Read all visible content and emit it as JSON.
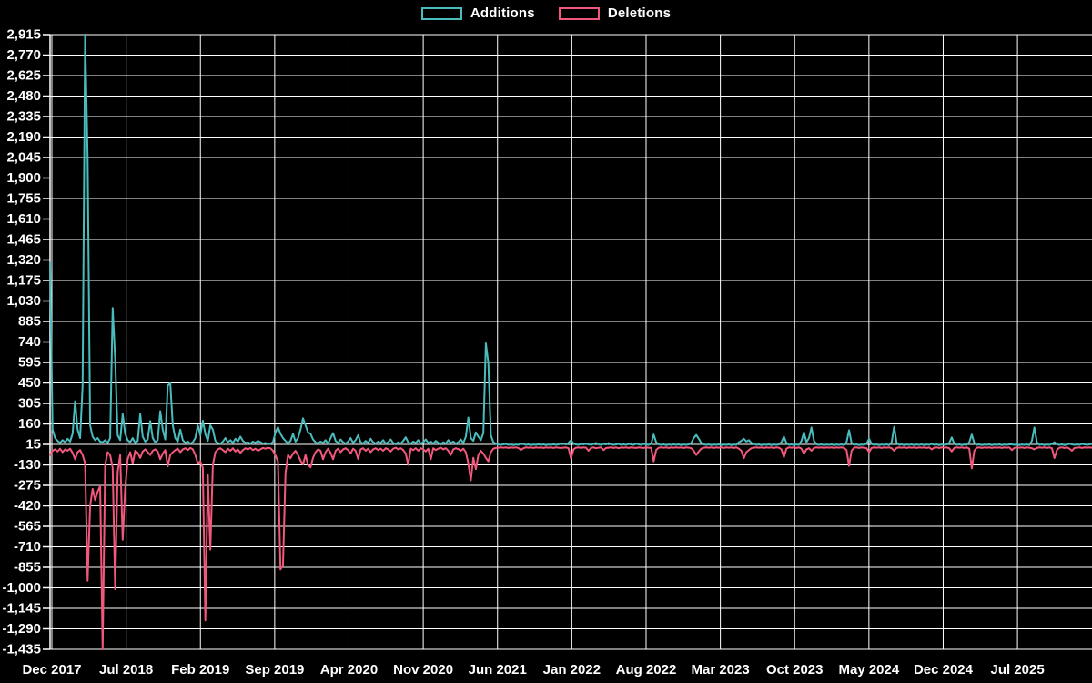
{
  "page": {
    "background": "#000000",
    "text_color": "#ffffff",
    "grid_color": "#ffffff",
    "axis_color": "#ffffff"
  },
  "legend": {
    "items": [
      {
        "label": "Additions",
        "color": "#4abcbd"
      },
      {
        "label": "Deletions",
        "color": "#f2587c"
      }
    ]
  },
  "chart_data": {
    "type": "line",
    "title": "",
    "xlabel": "",
    "ylabel": "",
    "grid": true,
    "legend_position": "top-center",
    "x_unit": "weeks",
    "x_range_note": "weekly points from Dec 2017 to Oct 2025",
    "x_tick_labels": [
      "Dec 2017",
      "Jul 2018",
      "Feb 2019",
      "Sep 2019",
      "Apr 2020",
      "Nov 2020",
      "Jun 2021",
      "Jan 2022",
      "Aug 2022",
      "Mar 2023",
      "Oct 2023",
      "May 2024",
      "Dec 2024",
      "Jul 2025"
    ],
    "y_min": -1435,
    "y_max": 2915,
    "y_step": 145,
    "y_tick_labels": [
      "2,915",
      "2,770",
      "2,625",
      "2,480",
      "2,335",
      "2,190",
      "2,045",
      "1,900",
      "1,755",
      "1,610",
      "1,465",
      "1,320",
      "1,175",
      "1,030",
      "885",
      "740",
      "595",
      "450",
      "305",
      "160",
      "15",
      "-130",
      "-275",
      "-420",
      "-565",
      "-710",
      "-855",
      "-1,000",
      "-1,145",
      "-1,290",
      "-1,435"
    ],
    "series": [
      {
        "name": "Additions",
        "color": "#4abcbd",
        "values": [
          1300,
          120,
          60,
          40,
          25,
          45,
          30,
          55,
          35,
          90,
          320,
          120,
          60,
          430,
          2915,
          2040,
          150,
          70,
          45,
          60,
          35,
          30,
          45,
          25,
          60,
          980,
          620,
          80,
          45,
          230,
          90,
          45,
          30,
          60,
          25,
          40,
          230,
          70,
          35,
          50,
          180,
          60,
          30,
          45,
          250,
          120,
          50,
          430,
          450,
          150,
          60,
          35,
          120,
          45,
          25,
          35,
          20,
          30,
          60,
          150,
          80,
          183,
          90,
          40,
          150,
          120,
          40,
          25,
          20,
          35,
          60,
          30,
          45,
          25,
          55,
          35,
          70,
          40,
          25,
          30,
          20,
          35,
          25,
          40,
          30,
          20,
          25,
          15,
          20,
          30,
          100,
          137,
          90,
          60,
          40,
          20,
          40,
          90,
          35,
          60,
          120,
          200,
          150,
          100,
          90,
          50,
          30,
          20,
          35,
          25,
          45,
          20,
          60,
          95,
          40,
          25,
          50,
          30,
          20,
          35,
          60,
          25,
          45,
          80,
          30,
          20,
          40,
          25,
          55,
          30,
          20,
          35,
          25,
          45,
          20,
          30,
          50,
          25,
          15,
          30,
          20,
          40,
          65,
          30,
          20,
          35,
          25,
          45,
          20,
          30,
          50,
          25,
          35,
          20,
          40,
          25,
          15,
          30,
          20,
          45,
          25,
          35,
          20,
          30,
          50,
          25,
          70,
          205,
          60,
          40,
          100,
          70,
          45,
          95,
          730,
          590,
          80,
          30,
          20,
          15,
          12,
          15,
          18,
          12,
          15,
          10,
          14,
          12,
          22,
          18,
          12,
          15,
          10,
          14,
          12,
          16,
          12,
          15,
          10,
          14,
          12,
          16,
          12,
          15,
          20,
          20,
          15,
          25,
          45,
          20,
          15,
          12,
          18,
          15,
          20,
          15,
          12,
          18,
          25,
          15,
          12,
          18,
          15,
          25,
          15,
          12,
          15,
          18,
          12,
          15,
          12,
          18,
          15,
          12,
          20,
          15,
          12,
          18,
          15,
          12,
          20,
          85,
          30,
          15,
          12,
          15,
          10,
          14,
          12,
          15,
          12,
          15,
          10,
          14,
          12,
          15,
          25,
          60,
          82,
          55,
          25,
          15,
          12,
          15,
          10,
          14,
          12,
          15,
          10,
          14,
          12,
          15,
          10,
          14,
          12,
          30,
          40,
          55,
          35,
          45,
          25,
          18,
          12,
          15,
          10,
          14,
          12,
          15,
          10,
          14,
          12,
          15,
          30,
          70,
          25,
          12,
          15,
          10,
          14,
          12,
          40,
          100,
          30,
          60,
          135,
          40,
          15,
          12,
          15,
          10,
          14,
          12,
          15,
          10,
          14,
          12,
          15,
          10,
          30,
          115,
          25,
          12,
          15,
          10,
          14,
          12,
          20,
          55,
          18,
          12,
          15,
          10,
          14,
          12,
          15,
          10,
          30,
          140,
          25,
          12,
          15,
          10,
          14,
          12,
          15,
          10,
          14,
          12,
          15,
          10,
          14,
          12,
          18,
          12,
          15,
          10,
          14,
          12,
          15,
          25,
          65,
          20,
          12,
          15,
          10,
          14,
          12,
          30,
          85,
          25,
          12,
          15,
          10,
          14,
          12,
          15,
          10,
          14,
          12,
          15,
          10,
          14,
          12,
          15,
          15,
          12,
          15,
          10,
          14,
          12,
          15,
          10,
          40,
          135,
          30,
          12,
          15,
          10,
          14,
          12,
          18,
          30,
          15,
          12,
          15,
          10,
          14,
          20,
          15,
          12,
          15,
          12,
          18,
          15,
          12,
          15,
          18
        ]
      },
      {
        "name": "Deletions",
        "color": "#f2587c",
        "values": [
          -60,
          -30,
          -20,
          -35,
          -15,
          -40,
          -20,
          -30,
          -15,
          -45,
          -90,
          -40,
          -25,
          -60,
          -120,
          -950,
          -420,
          -300,
          -380,
          -320,
          -280,
          -1435,
          -130,
          -40,
          -60,
          -150,
          -1010,
          -180,
          -60,
          -660,
          -300,
          -90,
          -40,
          -120,
          -30,
          -45,
          -80,
          -35,
          -20,
          -40,
          -60,
          -30,
          -20,
          -35,
          -90,
          -50,
          -25,
          -140,
          -60,
          -40,
          -25,
          -15,
          -40,
          -20,
          -12,
          -25,
          -10,
          -20,
          -60,
          -120,
          -105,
          -150,
          -1230,
          -200,
          -730,
          -130,
          -40,
          -20,
          -12,
          -25,
          -40,
          -15,
          -30,
          -12,
          -35,
          -20,
          -45,
          -25,
          -12,
          -20,
          -10,
          -25,
          -15,
          -30,
          -20,
          -10,
          -15,
          -8,
          -12,
          -30,
          -63,
          -105,
          -870,
          -840,
          -190,
          -60,
          -83,
          -50,
          -30,
          -60,
          -100,
          -127,
          -60,
          -130,
          -147,
          -80,
          -40,
          -20,
          -30,
          -90,
          -40,
          -15,
          -45,
          -90,
          -30,
          -15,
          -40,
          -20,
          -12,
          -25,
          -50,
          -15,
          -30,
          -88,
          -20,
          -12,
          -30,
          -15,
          -40,
          -20,
          -12,
          -25,
          -15,
          -30,
          -12,
          -20,
          -35,
          -15,
          -8,
          -20,
          -12,
          -25,
          -50,
          -130,
          -15,
          -25,
          -12,
          -30,
          -12,
          -20,
          -35,
          -15,
          -90,
          -12,
          -25,
          -15,
          -8,
          -20,
          -12,
          -30,
          -60,
          -20,
          -12,
          -18,
          -30,
          -15,
          -40,
          -120,
          -240,
          -80,
          -160,
          -60,
          -30,
          -50,
          -80,
          -105,
          -40,
          -15,
          -10,
          -8,
          -6,
          -8,
          -6,
          -10,
          -6,
          -8,
          -6,
          -10,
          -25,
          -12,
          -6,
          -8,
          -6,
          -10,
          -6,
          -8,
          -6,
          -10,
          -6,
          -8,
          -6,
          -10,
          -6,
          -8,
          -10,
          -8,
          -6,
          -12,
          -85,
          -20,
          -8,
          -6,
          -10,
          -6,
          -8,
          -30,
          -10,
          -6,
          -12,
          -8,
          -6,
          -25,
          -10,
          -8,
          -6,
          -10,
          -6,
          -12,
          -6,
          -8,
          -6,
          -10,
          -6,
          -8,
          -10,
          -6,
          -8,
          -10,
          -6,
          -8,
          -10,
          -105,
          -25,
          -8,
          -6,
          -8,
          -6,
          -10,
          -6,
          -8,
          -6,
          -8,
          -6,
          -10,
          -6,
          -8,
          -12,
          -30,
          -60,
          -35,
          -15,
          -8,
          -6,
          -8,
          -6,
          -10,
          -6,
          -8,
          -6,
          -10,
          -6,
          -8,
          -6,
          -10,
          -6,
          -15,
          -30,
          -82,
          -40,
          -25,
          -12,
          -8,
          -6,
          -8,
          -6,
          -10,
          -6,
          -8,
          -6,
          -10,
          -6,
          -8,
          -20,
          -75,
          -15,
          -6,
          -8,
          -6,
          -10,
          -6,
          -15,
          -50,
          -20,
          -12,
          -30,
          -10,
          -6,
          -8,
          -6,
          -10,
          -6,
          -8,
          -6,
          -10,
          -6,
          -8,
          -6,
          -10,
          -25,
          -137,
          -30,
          -8,
          -6,
          -10,
          -6,
          -8,
          -12,
          -40,
          -10,
          -6,
          -8,
          -6,
          -10,
          -6,
          -8,
          -6,
          -12,
          -30,
          -10,
          -6,
          -8,
          -6,
          -10,
          -6,
          -8,
          -6,
          -10,
          -6,
          -8,
          -6,
          -10,
          -6,
          -20,
          -8,
          -6,
          -10,
          -6,
          -8,
          -6,
          -12,
          -35,
          -10,
          -6,
          -8,
          -6,
          -10,
          -6,
          -15,
          -155,
          -30,
          -8,
          -6,
          -10,
          -6,
          -8,
          -6,
          -10,
          -6,
          -8,
          -6,
          -10,
          -6,
          -8,
          -6,
          -25,
          -10,
          -6,
          -8,
          -6,
          -10,
          -6,
          -8,
          -12,
          -20,
          -10,
          -6,
          -8,
          -6,
          -10,
          -6,
          -12,
          -82,
          -25,
          -8,
          -6,
          -10,
          -6,
          -15,
          -30,
          -10,
          -8,
          -6,
          -10,
          -6,
          -8,
          -6,
          -8
        ]
      }
    ]
  }
}
